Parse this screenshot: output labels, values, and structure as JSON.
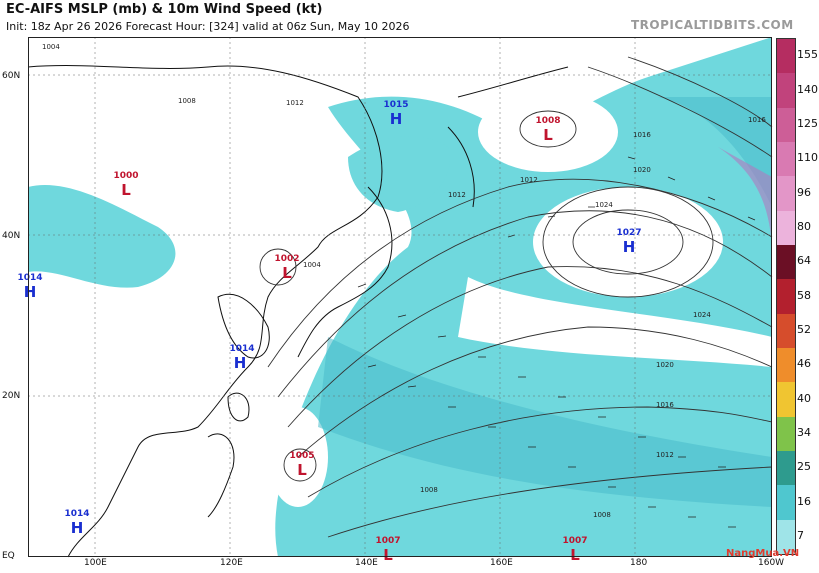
{
  "header": {
    "title": "EC-AIFS MSLP (mb) & 10m Wind Speed (kt)",
    "subtitle": "Init: 18z Apr 26 2026   Forecast Hour: [324]   valid at 06z Sun, May 10 2026",
    "site": "TROPICALTIDBITS.COM"
  },
  "axes": {
    "lat_labels": [
      "60N",
      "40N",
      "20N",
      "EQ"
    ],
    "lon_labels": [
      "100E",
      "120E",
      "140E",
      "160E",
      "180",
      "160W"
    ]
  },
  "colorbar": {
    "labels": [
      "155",
      "140",
      "125",
      "110",
      "96",
      "80",
      "64",
      "58",
      "52",
      "46",
      "40",
      "34",
      "25",
      "16",
      "7"
    ],
    "colors": [
      "#b52d61",
      "#c1437c",
      "#cd5e97",
      "#d97ab2",
      "#e396c8",
      "#ecb3dc",
      "#6b0f25",
      "#b3202e",
      "#d64d2c",
      "#ef8d2b",
      "#f0c531",
      "#7fc34a",
      "#2e9b8e",
      "#4fc7cf",
      "#9fe4e8"
    ]
  },
  "pressure_centers": [
    {
      "type": "L",
      "value": "1000",
      "color": "#c0142e"
    },
    {
      "type": "H",
      "value": "1015",
      "color": "#1a2fd0"
    },
    {
      "type": "L",
      "value": "1008",
      "color": "#c0142e"
    },
    {
      "type": "H",
      "value": "1027",
      "color": "#1a2fd0"
    },
    {
      "type": "L",
      "value": "1002",
      "color": "#c0142e"
    },
    {
      "type": "H",
      "value": "1014",
      "color": "#1a2fd0"
    },
    {
      "type": "H",
      "value": "1014",
      "color": "#1a2fd0"
    },
    {
      "type": "L",
      "value": "1005",
      "color": "#c0142e"
    },
    {
      "type": "H",
      "value": "1014",
      "color": "#1a2fd0"
    },
    {
      "type": "L",
      "value": "1007",
      "color": "#c0142e"
    },
    {
      "type": "L",
      "value": "1007",
      "color": "#c0142e"
    }
  ],
  "isobar_labels": [
    "1004",
    "1008",
    "1012",
    "1012",
    "1012",
    "1016",
    "1020",
    "1024",
    "1024",
    "1020",
    "1016",
    "1012",
    "1008",
    "1008",
    "1016",
    "1004"
  ],
  "watermark": "NangMua.VN"
}
